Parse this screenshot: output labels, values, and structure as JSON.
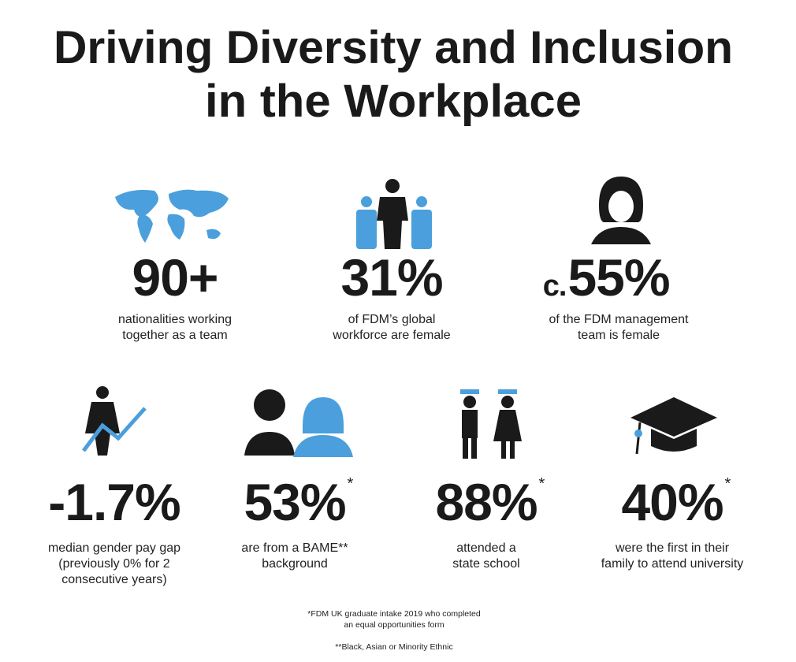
{
  "header": {
    "title_lines": [
      "Driving Diversity and Inclusion",
      "in the Workplace"
    ]
  },
  "stats": [
    {
      "value": "90+",
      "caption_lines": [
        "nationalities working",
        "together as a team"
      ]
    },
    {
      "value": "31%",
      "caption_lines": [
        "of FDM’s global",
        "workforce are female"
      ]
    },
    {
      "prefix": "c.",
      "value": "55%",
      "caption_lines": [
        "of the FDM management",
        "team is female"
      ]
    },
    {
      "value": "-1.7%",
      "caption_lines": [
        "median gender pay gap",
        "(previously 0% for 2",
        "consecutive years)"
      ]
    },
    {
      "value": "53%",
      "mark": "*",
      "caption_lines": [
        "are from a BAME**",
        "background"
      ]
    },
    {
      "value": "88%",
      "mark": "*",
      "caption_lines": [
        "attended a",
        "state school"
      ]
    },
    {
      "value": "40%",
      "mark": "*",
      "caption_lines": [
        "were the first in their",
        "family to attend university"
      ]
    }
  ],
  "footnotes": [
    "*FDM UK graduate intake 2019 who completed",
    "an equal opportunities form",
    "**Black, Asian or Minority Ethnic"
  ]
}
